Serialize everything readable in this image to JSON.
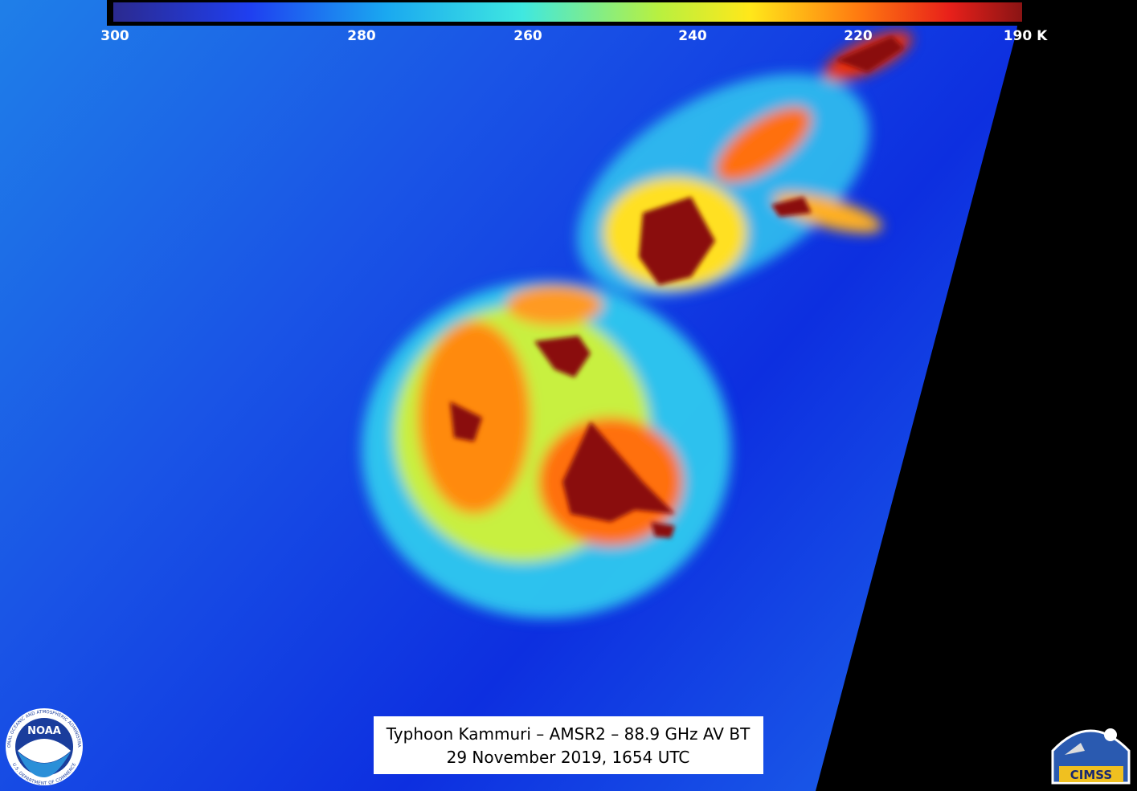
{
  "colorbar": {
    "ticks": [
      300,
      280,
      260,
      240,
      220,
      {
        "value": 190,
        "label": "190 K"
      }
    ]
  },
  "caption": {
    "line1": "Typhoon Kammuri – AMSR2 – 88.9 GHz AV BT",
    "line2": "29 November 2019, 1654 UTC"
  },
  "logos": {
    "noaa": "NOAA",
    "noaa_ring_top": "NATIONAL OCEANIC AND ATMOSPHERIC ADMINISTRATION",
    "noaa_ring_bottom": "U.S. DEPARTMENT OF COMMERCE",
    "cimss": "CIMSS"
  }
}
